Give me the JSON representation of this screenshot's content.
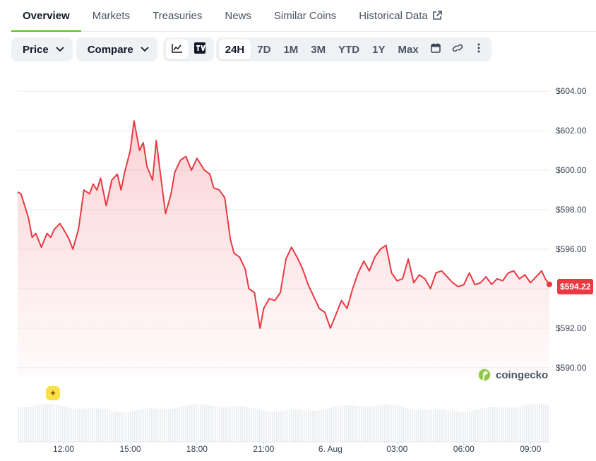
{
  "tabs": [
    {
      "label": "Overview",
      "active": true
    },
    {
      "label": "Markets"
    },
    {
      "label": "Treasuries"
    },
    {
      "label": "News"
    },
    {
      "label": "Similar Coins"
    },
    {
      "label": "Historical Data",
      "icon": "external-link-icon"
    }
  ],
  "toolbar": {
    "price_label": "Price",
    "compare_label": "Compare",
    "chart_types": [
      "line-chart-icon",
      "tradingview-icon"
    ],
    "ranges": [
      "24H",
      "7D",
      "1M",
      "3M",
      "YTD",
      "1Y",
      "Max"
    ],
    "selected_range": "24H",
    "extra_icons": [
      "calendar-icon",
      "link-icon",
      "more-vertical-icon"
    ]
  },
  "watermark": "coingecko",
  "current_price_label": "$594.22",
  "colors": {
    "line": "#ea3943",
    "accent": "#4bcc00",
    "badge": "#ea3943"
  },
  "chart_data": {
    "type": "line",
    "title": "",
    "xlabel": "",
    "ylabel": "",
    "ylim": [
      589.6,
      604.4
    ],
    "yticks": [
      604,
      602,
      600,
      598,
      596,
      594,
      592,
      590
    ],
    "ytick_labels": [
      "$604.00",
      "$602.00",
      "$600.00",
      "$598.00",
      "$596.00",
      "",
      "$592.00",
      "$590.00"
    ],
    "x_range": [
      "08-05 09:56",
      "08-06 09:51"
    ],
    "xticks": [
      {
        "label": "12:00",
        "t": "08-05 12:00"
      },
      {
        "label": "15:00",
        "t": "08-05 15:00"
      },
      {
        "label": "18:00",
        "t": "08-05 18:00"
      },
      {
        "label": "21:00",
        "t": "08-05 21:00"
      },
      {
        "label": "6. Aug",
        "t": "08-06 00:00"
      },
      {
        "label": "03:00",
        "t": "08-06 03:00"
      },
      {
        "label": "06:00",
        "t": "08-06 06:00"
      },
      {
        "label": "09:00",
        "t": "08-06 09:00"
      }
    ],
    "grid": true,
    "series": [
      {
        "x": [
          "08-05 09:56",
          "08-05 10:05",
          "08-05 10:15",
          "08-05 10:25",
          "08-05 10:35",
          "08-05 10:45",
          "08-05 11:00",
          "08-05 11:15",
          "08-05 11:25",
          "08-05 11:35",
          "08-05 11:50",
          "08-05 12:00",
          "08-05 12:15",
          "08-05 12:25",
          "08-05 12:40",
          "08-05 12:55",
          "08-05 13:10",
          "08-05 13:20",
          "08-05 13:30",
          "08-05 13:40",
          "08-05 13:55",
          "08-05 14:10",
          "08-05 14:25",
          "08-05 14:35",
          "08-05 14:45",
          "08-05 15:00",
          "08-05 15:10",
          "08-05 15:25",
          "08-05 15:35",
          "08-05 15:45",
          "08-05 16:00",
          "08-05 16:10",
          "08-05 16:20",
          "08-05 16:35",
          "08-05 16:50",
          "08-05 17:00",
          "08-05 17:15",
          "08-05 17:30",
          "08-05 17:45",
          "08-05 18:00",
          "08-05 18:20",
          "08-05 18:35",
          "08-05 18:45",
          "08-05 19:00",
          "08-05 19:15",
          "08-05 19:30",
          "08-05 19:40",
          "08-05 19:55",
          "08-05 20:10",
          "08-05 20:20",
          "08-05 20:35",
          "08-05 20:50",
          "08-05 21:00",
          "08-05 21:15",
          "08-05 21:30",
          "08-05 21:45",
          "08-05 22:00",
          "08-05 22:15",
          "08-05 22:30",
          "08-05 22:45",
          "08-05 23:00",
          "08-05 23:15",
          "08-05 23:30",
          "08-05 23:45",
          "08-06 00:00",
          "08-06 00:15",
          "08-06 00:30",
          "08-06 00:45",
          "08-06 01:00",
          "08-06 01:15",
          "08-06 01:30",
          "08-06 01:45",
          "08-06 02:00",
          "08-06 02:15",
          "08-06 02:30",
          "08-06 02:45",
          "08-06 03:00",
          "08-06 03:15",
          "08-06 03:30",
          "08-06 03:45",
          "08-06 04:00",
          "08-06 04:15",
          "08-06 04:30",
          "08-06 04:45",
          "08-06 05:00",
          "08-06 05:15",
          "08-06 05:30",
          "08-06 05:45",
          "08-06 06:00",
          "08-06 06:15",
          "08-06 06:30",
          "08-06 06:45",
          "08-06 07:00",
          "08-06 07:15",
          "08-06 07:30",
          "08-06 07:45",
          "08-06 08:00",
          "08-06 08:15",
          "08-06 08:30",
          "08-06 08:45",
          "08-06 09:00",
          "08-06 09:15",
          "08-06 09:30",
          "08-06 09:40",
          "08-06 09:51"
        ],
        "values": [
          598.9,
          598.8,
          598.2,
          597.6,
          596.6,
          596.8,
          596.1,
          596.8,
          596.6,
          597.0,
          597.3,
          597.0,
          596.5,
          596.0,
          597.0,
          599.0,
          598.8,
          599.3,
          599.0,
          599.6,
          598.2,
          599.5,
          599.8,
          599.0,
          599.9,
          601.0,
          602.5,
          601.0,
          601.4,
          600.2,
          599.5,
          601.5,
          600.0,
          597.8,
          598.8,
          599.9,
          600.5,
          600.7,
          600.0,
          600.6,
          600.0,
          599.8,
          599.1,
          599.0,
          598.6,
          596.5,
          595.8,
          595.6,
          595.0,
          594.0,
          593.8,
          592.0,
          593.0,
          593.5,
          593.4,
          593.8,
          595.5,
          596.1,
          595.6,
          595.0,
          594.2,
          593.6,
          593.0,
          592.8,
          592.0,
          592.7,
          593.4,
          593.0,
          594.0,
          594.8,
          595.4,
          594.9,
          595.6,
          596.0,
          596.2,
          594.8,
          594.4,
          594.5,
          595.5,
          594.3,
          594.7,
          594.5,
          594.0,
          594.8,
          594.9,
          594.6,
          594.3,
          594.1,
          594.2,
          594.8,
          594.2,
          594.3,
          594.6,
          594.22,
          594.5,
          594.4,
          594.8,
          594.9,
          594.5,
          594.7,
          594.3,
          594.6,
          594.9,
          594.5,
          594.22
        ]
      }
    ],
    "volume": true
  }
}
